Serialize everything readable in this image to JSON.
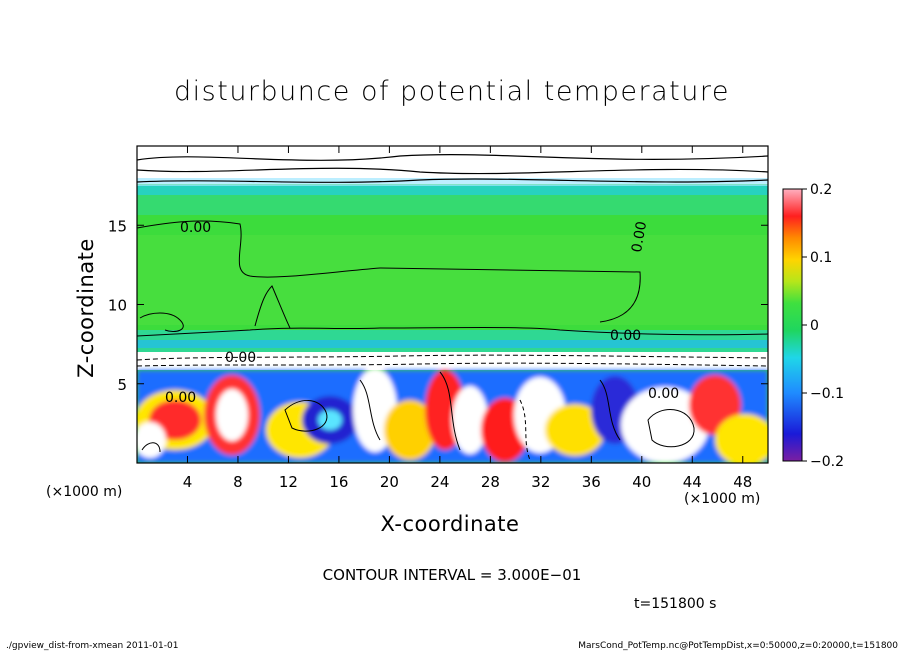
{
  "chart_data": {
    "type": "heatmap",
    "title": "disturbunce of potential temperature",
    "xlabel": "X-coordinate",
    "ylabel": "Z-coordinate",
    "x_unit_left": "(×1000 m)",
    "x_unit_right": "(×1000 m)",
    "x_ticks": [
      4,
      8,
      12,
      16,
      20,
      24,
      28,
      32,
      36,
      40,
      44,
      48
    ],
    "y_ticks": [
      5,
      10,
      15
    ],
    "xlim": [
      0,
      50
    ],
    "ylim": [
      0,
      20
    ],
    "colorbar": {
      "ticks": [
        0.2,
        0.1,
        0,
        -0.1,
        -0.2
      ],
      "tick_labels": [
        "0.2",
        "0.1",
        "0",
        "−0.1",
        "−0.2"
      ],
      "range": [
        -0.2,
        0.2
      ]
    },
    "contour_labels": [
      "0.00",
      "0.00",
      "0.00",
      "0.00",
      "0.00",
      "0.00"
    ],
    "contour_interval_text": "CONTOUR INTERVAL = 3.000E−01",
    "time_text": "t=151800 s",
    "footer_left": "./gpview_dist-from-xmean  2011-01-01",
    "footer_right": "MarsCond_PotTemp.nc@PotTempDist,x=0:50000,z=0:20000,t=151800"
  }
}
